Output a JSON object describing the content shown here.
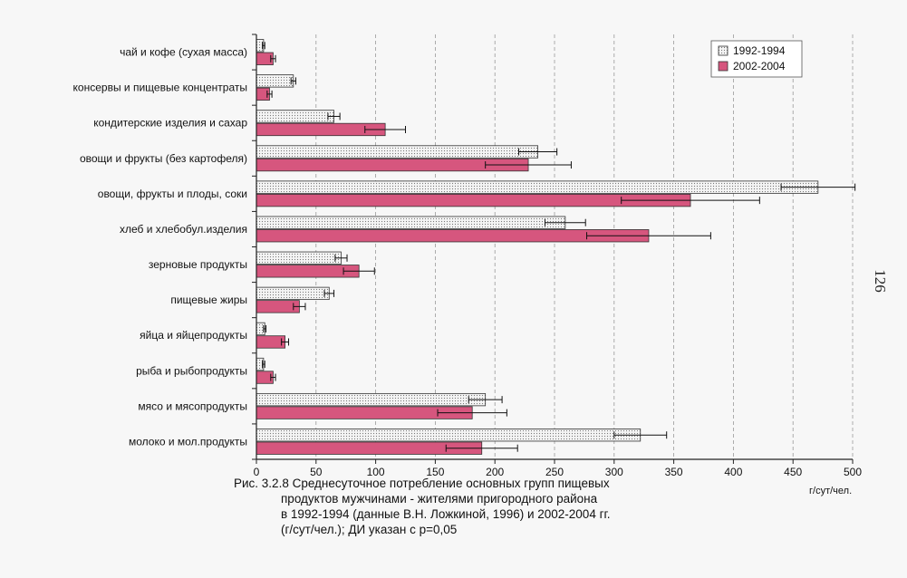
{
  "page_number": "126",
  "caption": {
    "line1": "Рис. 3.2.8 Среднесуточное потребление основных групп пищевых",
    "line2": "продуктов мужчинами - жителями пригородного района",
    "line3": "в 1992-1994 (данные В.Н. Ложкиной, 1996) и 2002-2004 гг.",
    "line4": "(г/сут/чел.); ДИ указан с р=0,05"
  },
  "chart_data": {
    "type": "bar",
    "orientation": "horizontal",
    "xlabel": "г/сут/чел.",
    "xlim": [
      0,
      500
    ],
    "xticks": [
      0,
      50,
      100,
      150,
      200,
      250,
      300,
      350,
      400,
      450,
      500
    ],
    "grid": "vertical dashed",
    "legend_position": "top-right",
    "categories": [
      "чай и кофе (сухая масса)",
      "консервы и пищевые концентраты",
      "кондитерские изделия и сахар",
      "овощи и фрукты (без картофеля)",
      "овощи, фрукты и плоды, соки",
      "хлеб и хлебобул.изделия",
      "зерновые продукты",
      "пищевые жиры",
      "яйца и яйцепродукты",
      "рыба и рыбопродукты",
      "мясо и мясопродукты",
      "молоко и мол.продукты"
    ],
    "series": [
      {
        "name": "1992-1994",
        "color": "#e8e8e8",
        "pattern": "dotted",
        "values": [
          6,
          31,
          65,
          236,
          471,
          259,
          71,
          61,
          7,
          6,
          192,
          322
        ],
        "ci": [
          1,
          2,
          5,
          16,
          31,
          17,
          5,
          4,
          1,
          1,
          14,
          22
        ]
      },
      {
        "name": "2002-2004",
        "color": "#d6567e",
        "pattern": "solid",
        "values": [
          14,
          11,
          108,
          228,
          364,
          329,
          86,
          36,
          24,
          14,
          181,
          189
        ],
        "ci": [
          2,
          2,
          17,
          36,
          58,
          52,
          13,
          5,
          3,
          2,
          29,
          30
        ]
      }
    ]
  }
}
